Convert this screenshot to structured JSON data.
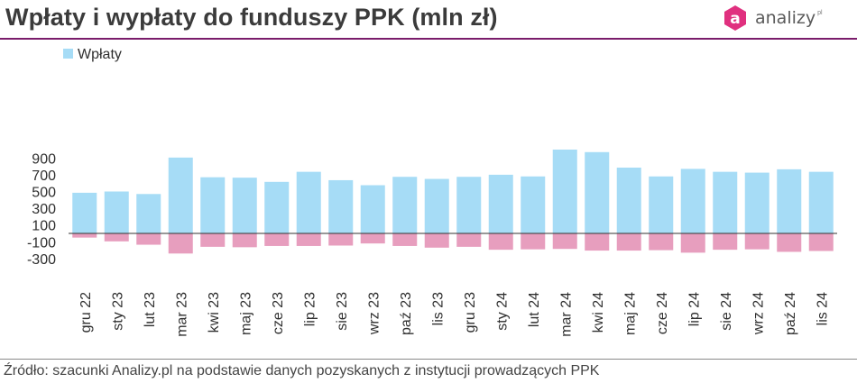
{
  "header": {
    "title": "Wpłaty i wypłaty do funduszy PPK (mln zł)",
    "logo_text": "analizy",
    "logo_sup": "pl",
    "logo_letter": "a"
  },
  "footer": {
    "source": "Źródło: szacunki Analizy.pl na podstawie danych pozyskanych z instytucji prowadzących PPK"
  },
  "colors": {
    "inflow": "#a6dcf6",
    "outflow": "#e79ebe",
    "brand": "#7a1c6b",
    "logo": "#e0307f"
  },
  "chart_data": {
    "type": "bar",
    "categories": [
      "gru 22",
      "sty 23",
      "lut 23",
      "mar 23",
      "kwi 23",
      "maj 23",
      "cze 23",
      "lip 23",
      "sie 23",
      "wrz 23",
      "paź 23",
      "lis 23",
      "gru 23",
      "sty 24",
      "lut 24",
      "mar 24",
      "kwi 24",
      "maj 24",
      "cze 24",
      "lip 24",
      "sie 24",
      "wrz 24",
      "paź 24",
      "lis 24"
    ],
    "series": [
      {
        "name": "Wpłaty",
        "values": [
          485,
          500,
          470,
          905,
          670,
          665,
          615,
          735,
          635,
          575,
          675,
          650,
          675,
          700,
          680,
          1000,
          970,
          785,
          680,
          770,
          735,
          725,
          765,
          735
        ]
      },
      {
        "values": [
          -50,
          -95,
          -135,
          -240,
          -160,
          -165,
          -150,
          -150,
          -145,
          -120,
          -150,
          -170,
          -160,
          -195,
          -190,
          -185,
          -205,
          -205,
          -200,
          -230,
          -195,
          -190,
          -220,
          -210
        ]
      }
    ],
    "yticks": [
      900,
      700,
      500,
      300,
      100,
      -100,
      -300
    ],
    "ylim": [
      -330,
      1010
    ],
    "legend": "top-left",
    "grid": false
  }
}
